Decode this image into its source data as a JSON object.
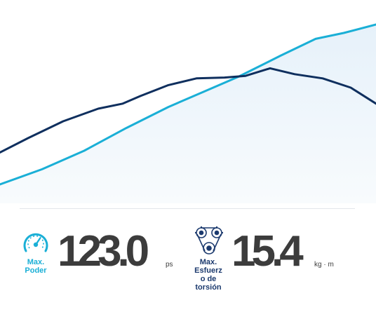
{
  "chart_data": {
    "type": "line",
    "title": "",
    "xlabel": "",
    "ylabel": "",
    "grid": false,
    "series": [
      {
        "color": "#1aafd6",
        "x": [
          0,
          60,
          120,
          180,
          240,
          290,
          340,
          400,
          450,
          490,
          536
        ],
        "y": [
          10,
          28,
          50,
          77,
          102,
          120,
          138,
          163,
          183,
          190,
          200
        ]
      },
      {
        "color": "#0f2f5e",
        "x": [
          0,
          40,
          90,
          140,
          175,
          200,
          240,
          280,
          320,
          350,
          385,
          420,
          460,
          500,
          536
        ],
        "y": [
          48,
          65,
          85,
          100,
          106,
          115,
          128,
          136,
          137,
          139,
          148,
          141,
          136,
          125,
          106
        ]
      }
    ]
  },
  "stats": {
    "power": {
      "icon": "speedometer-icon",
      "label_lines": [
        "Max.",
        "Poder"
      ],
      "value": "123.0",
      "unit": "ps"
    },
    "torque": {
      "icon": "engine-gears-icon",
      "label_lines": [
        "Max.",
        "Esfuerz",
        "o de",
        "torsión"
      ],
      "value": "15.4",
      "unit": "kg · m"
    }
  },
  "colors": {
    "accent": "#1aafd6",
    "navy": "#1c3a6e",
    "number": "#3c3c3c",
    "area_fill": "#eef5fb"
  }
}
